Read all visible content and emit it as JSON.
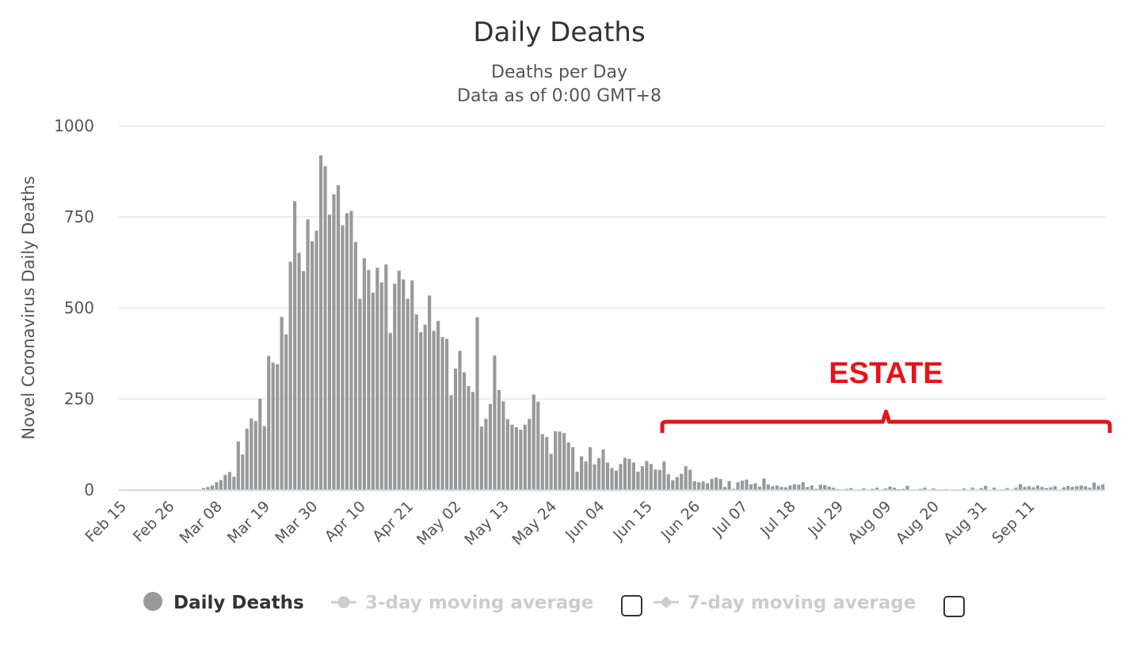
{
  "colors": {
    "bar": "#999999",
    "grid": "#e6e6e6",
    "baseline": "#ccd6eb",
    "annotation": "#e8121a",
    "legend_hidden": "#cccccc",
    "legend_marker": "#999999"
  },
  "chart_data": {
    "type": "bar",
    "title": "Daily Deaths",
    "subtitle": "Deaths per Day",
    "subtitle2": "Data as of 0:00 GMT+8",
    "xlabel": "",
    "ylabel": "Novel Coronavirus Daily Deaths",
    "ylim": [
      0,
      1000
    ],
    "y_ticks": [
      "0",
      "250",
      "500",
      "750",
      "1000"
    ],
    "grid": true,
    "x_tick_labels": [
      "Feb 15",
      "Feb 26",
      "Mar 08",
      "Mar 19",
      "Mar 30",
      "Apr 10",
      "Apr 21",
      "May 02",
      "May 13",
      "May 24",
      "Jun 04",
      "Jun 15",
      "Jun 26",
      "Jul 07",
      "Jul 18",
      "Jul 29",
      "Aug 09",
      "Aug 20",
      "Aug 31",
      "Sep 11"
    ],
    "categories_range": [
      "Feb 15",
      "Sep 22"
    ],
    "series": [
      {
        "name": "Daily Deaths",
        "values": [
          0,
          0,
          0,
          0,
          0,
          0,
          0,
          0,
          0,
          0,
          0,
          0,
          0,
          0,
          0,
          0,
          0,
          0,
          0,
          5,
          8,
          12,
          21,
          27,
          41,
          49,
          36,
          133,
          97,
          168,
          196,
          189,
          250,
          175,
          368,
          349,
          345,
          475,
          427,
          627,
          793,
          651,
          601,
          743,
          683,
          712,
          919,
          889,
          756,
          812,
          837,
          727,
          760,
          766,
          681,
          525,
          636,
          604,
          542,
          610,
          570,
          619,
          431,
          566,
          602,
          578,
          525,
          575,
          482,
          433,
          454,
          534,
          437,
          464,
          420,
          415,
          260,
          333,
          382,
          323,
          285,
          269,
          474,
          174,
          195,
          236,
          369,
          274,
          243,
          194,
          179,
          172,
          165,
          179,
          195,
          262,
          242,
          153,
          145,
          99,
          161,
          160,
          156,
          130,
          117,
          50,
          92,
          78,
          117,
          70,
          87,
          111,
          75,
          60,
          53,
          71,
          88,
          85,
          75,
          50,
          65,
          79,
          71,
          56,
          55,
          78,
          43,
          26,
          35,
          44,
          65,
          55,
          24,
          21,
          23,
          18,
          30,
          34,
          30,
          8,
          24,
          3,
          21,
          25,
          28,
          15,
          18,
          9,
          31,
          15,
          10,
          12,
          8,
          7,
          12,
          15,
          14,
          21,
          8,
          12,
          3,
          14,
          13,
          9,
          6,
          2,
          0,
          3,
          5,
          0,
          0,
          4,
          0,
          3,
          6,
          0,
          4,
          9,
          6,
          2,
          3,
          11,
          0,
          0,
          3,
          6,
          0,
          4,
          0,
          0,
          2,
          0,
          0,
          0,
          4,
          0,
          6,
          0,
          5,
          11,
          0,
          6,
          0,
          0,
          5,
          0,
          6,
          16,
          8,
          10,
          7,
          12,
          8,
          5,
          7,
          10,
          0,
          7,
          11,
          8,
          10,
          12,
          10,
          6,
          20,
          11,
          15
        ]
      }
    ],
    "annotations": [
      {
        "text": "ESTATE",
        "from": "Jun 20",
        "to": "Sep 22"
      }
    ],
    "legend": {
      "placement": "bottom",
      "items": [
        {
          "name": "Daily Deaths",
          "active": true,
          "marker": "circle"
        },
        {
          "name": "3-day moving average",
          "active": false,
          "marker": "line-circle",
          "checkbox": true
        },
        {
          "name": "7-day moving average",
          "active": false,
          "marker": "line-diamond",
          "checkbox": true
        }
      ]
    }
  }
}
